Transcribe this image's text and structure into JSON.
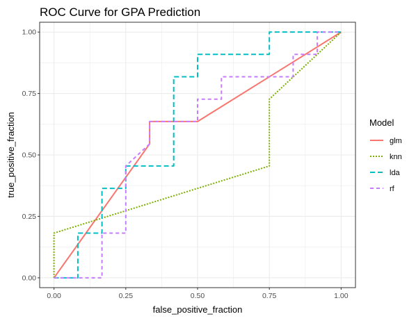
{
  "chart_data": {
    "type": "line",
    "title": "ROC Curve for GPA Prediction",
    "xlabel": "false_positive_fraction",
    "ylabel": "true_positive_fraction",
    "xlim": [
      -0.05,
      1.05
    ],
    "ylim": [
      -0.04,
      1.04
    ],
    "x_ticks": [
      0,
      0.25,
      0.5,
      0.75,
      1
    ],
    "x_tick_labels": [
      "0.00",
      "0.25",
      "0.50",
      "0.75",
      "1.00"
    ],
    "y_ticks": [
      0,
      0.25,
      0.5,
      0.75,
      1
    ],
    "y_tick_labels": [
      "0.00",
      "0.25",
      "0.50",
      "0.75",
      "1.00"
    ],
    "grid": true,
    "legend": {
      "title": "Model",
      "position": "right"
    },
    "series": [
      {
        "name": "glm",
        "color": "#F8766D",
        "dash": "solid",
        "points": [
          [
            0,
            0
          ],
          [
            0.333,
            0.545
          ],
          [
            0.333,
            0.636
          ],
          [
            0.5,
            0.636
          ],
          [
            1,
            1
          ]
        ]
      },
      {
        "name": "knn",
        "color": "#7CAE00",
        "dash": "dotted",
        "points": [
          [
            0,
            0
          ],
          [
            0,
            0.182
          ],
          [
            0.75,
            0.455
          ],
          [
            0.75,
            0.727
          ],
          [
            1,
            1
          ]
        ]
      },
      {
        "name": "lda",
        "color": "#00BFC4",
        "dash": "longdash",
        "points": [
          [
            0,
            0
          ],
          [
            0.083,
            0
          ],
          [
            0.083,
            0.182
          ],
          [
            0.167,
            0.182
          ],
          [
            0.167,
            0.364
          ],
          [
            0.25,
            0.364
          ],
          [
            0.25,
            0.455
          ],
          [
            0.417,
            0.455
          ],
          [
            0.417,
            0.818
          ],
          [
            0.5,
            0.818
          ],
          [
            0.5,
            0.909
          ],
          [
            0.75,
            0.909
          ],
          [
            0.75,
            1
          ],
          [
            1,
            1
          ]
        ]
      },
      {
        "name": "rf",
        "color": "#C77CFF",
        "dash": "dashed",
        "points": [
          [
            0,
            0
          ],
          [
            0.167,
            0
          ],
          [
            0.167,
            0.182
          ],
          [
            0.25,
            0.182
          ],
          [
            0.25,
            0.455
          ],
          [
            0.333,
            0.545
          ],
          [
            0.333,
            0.636
          ],
          [
            0.5,
            0.636
          ],
          [
            0.5,
            0.727
          ],
          [
            0.583,
            0.727
          ],
          [
            0.583,
            0.818
          ],
          [
            0.833,
            0.818
          ],
          [
            0.833,
            0.909
          ],
          [
            0.917,
            0.909
          ],
          [
            0.917,
            1
          ],
          [
            1,
            1
          ]
        ]
      }
    ]
  }
}
